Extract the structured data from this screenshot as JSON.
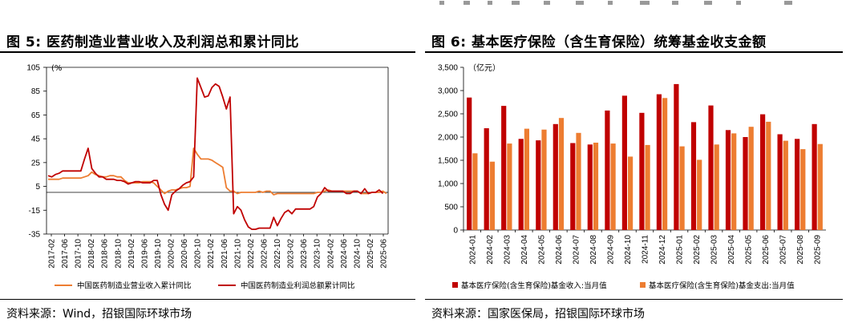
{
  "left": {
    "title": "图 5: 医药制造业营业收入及利润总和累计同比",
    "source": "资料来源：Wind，招银国际环球市场",
    "chart_data": {
      "type": "line",
      "unit": "(%",
      "ylim": [
        -35,
        105
      ],
      "yticks": [
        105,
        85,
        65,
        45,
        25,
        5,
        -15,
        -35
      ],
      "xtick_labels": [
        "2017-02",
        "2017-06",
        "2017-10",
        "2018-02",
        "2018-06",
        "2018-10",
        "2019-02",
        "2019-06",
        "2019-10",
        "2020-02",
        "2020-06",
        "2020-10",
        "2021-02",
        "2021-06",
        "2021-10",
        "2022-02",
        "2022-06",
        "2022-10",
        "2023-02",
        "2023-06",
        "2023-10",
        "2024-02",
        "2024-06",
        "2024-10",
        "2025-02",
        "2025-06"
      ],
      "series": [
        {
          "name": "中国医药制造业营业收入累计同比",
          "color": "#ED7D31",
          "values": [
            11,
            11,
            11,
            11,
            12,
            12,
            12,
            12,
            12,
            12,
            13,
            14,
            17,
            15,
            14,
            13,
            13,
            14,
            14,
            13,
            13,
            10,
            8,
            8,
            8,
            8,
            9,
            9,
            9,
            8,
            5,
            2,
            -1,
            1,
            2,
            2,
            3,
            4,
            4,
            5,
            37,
            32,
            28,
            28,
            28,
            27,
            25,
            23,
            21,
            4,
            1,
            1,
            -1,
            0,
            0,
            0,
            0,
            0,
            1,
            0,
            1,
            1,
            -2,
            -1,
            -1,
            -1,
            -1,
            -1,
            -1,
            -1,
            -1,
            -1,
            -1,
            -1,
            0,
            0,
            1,
            2,
            1,
            1,
            1,
            1,
            1,
            1,
            1,
            1,
            -1,
            -1,
            -1,
            0,
            0,
            0,
            1,
            -1
          ]
        },
        {
          "name": "中国医药制造业利润总额累计同比",
          "color": "#C00000",
          "values": [
            14,
            13,
            15,
            16,
            18,
            18,
            18,
            18,
            18,
            18,
            28,
            37,
            20,
            16,
            13,
            13,
            11,
            11,
            11,
            10,
            10,
            9,
            7,
            8,
            9,
            9,
            8,
            8,
            8,
            10,
            10,
            -2,
            -10,
            -15,
            -2,
            1,
            3,
            6,
            8,
            9,
            13,
            96,
            88,
            80,
            81,
            88,
            91,
            89,
            80,
            70,
            80,
            -18,
            -12,
            -15,
            -23,
            -29,
            -31,
            -31,
            -30,
            -30,
            -30,
            -30,
            -21,
            -28,
            -22,
            -17,
            -15,
            -18,
            -14,
            -14,
            -14,
            -14,
            -14,
            -12,
            -4,
            -1,
            4,
            1,
            1,
            1,
            1,
            1,
            -1,
            -1,
            1,
            1,
            -1,
            3,
            -1,
            0,
            0,
            2,
            -1
          ]
        }
      ],
      "legend_position": "bottom"
    }
  },
  "right": {
    "title": "图 6: 基本医疗保险（含生育保险）统筹基金收支金额",
    "source": "资料来源：国家医保局，招银国际环球市场",
    "chart_data": {
      "type": "bar",
      "unit": "（亿元）",
      "ylim": [
        0,
        3500
      ],
      "yticks": [
        0,
        500,
        1000,
        1500,
        2000,
        2500,
        3000,
        3500
      ],
      "ytick_labels": [
        "0",
        "500",
        "1,000",
        "1,500",
        "2,000",
        "2,500",
        "3,000",
        "3,500"
      ],
      "categories": [
        "2024-01",
        "2024-02",
        "2024-03",
        "2024-04",
        "2024-05",
        "2024-06",
        "2024-07",
        "2024-08",
        "2024-09",
        "2024-10",
        "2024-11",
        "2024-12",
        "2025-01",
        "2025-02",
        "2025-03",
        "2025-04",
        "2025-05",
        "2025-06",
        "2025-07",
        "2025-08",
        "2025-09"
      ],
      "series": [
        {
          "name": "基本医疗保险(含生育保险)基金收入:当月值",
          "color": "#C00000",
          "values": [
            2850,
            2190,
            2670,
            1960,
            1930,
            2280,
            1870,
            1840,
            2570,
            2890,
            2520,
            2920,
            3140,
            2320,
            2680,
            2150,
            2000,
            2490,
            2060,
            1960,
            2280
          ]
        },
        {
          "name": "基本医疗保险(含生育保险)基金支出:当月值",
          "color": "#ED7D31",
          "values": [
            1650,
            1470,
            1860,
            2180,
            2160,
            2410,
            2090,
            1880,
            1860,
            1580,
            1830,
            2840,
            1800,
            1510,
            1840,
            2080,
            2220,
            2330,
            1920,
            1740,
            1850
          ]
        }
      ],
      "legend_position": "bottom"
    }
  }
}
